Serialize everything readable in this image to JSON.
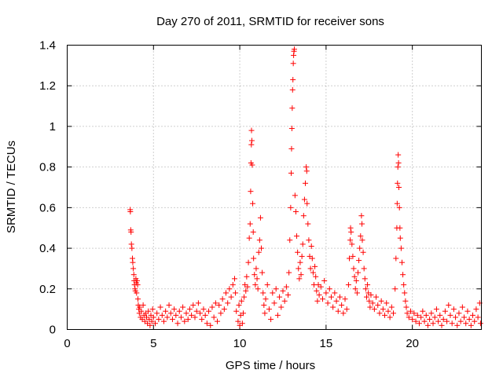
{
  "chart_data": {
    "type": "scatter",
    "title": "Day 270 of 2011, SRMTID for receiver sons",
    "xlabel": "GPS time / hours",
    "ylabel": "SRMTID / TECUs",
    "xlim": [
      0,
      24
    ],
    "ylim": [
      0,
      1.4
    ],
    "xticks": [
      "0",
      "5",
      "10",
      "15",
      "20"
    ],
    "yticks": [
      "0",
      "0.2",
      "0.4",
      "0.6",
      "0.8",
      "1",
      "1.2",
      "1.4"
    ],
    "grid": true,
    "marker": "+",
    "color": "#ff0000",
    "series": [
      {
        "points": [
          [
            3.65,
            0.59
          ],
          [
            3.66,
            0.58
          ],
          [
            3.68,
            0.49
          ],
          [
            3.7,
            0.48
          ],
          [
            3.72,
            0.42
          ],
          [
            3.75,
            0.4
          ],
          [
            3.78,
            0.35
          ],
          [
            3.8,
            0.33
          ],
          [
            3.83,
            0.3
          ],
          [
            3.86,
            0.27
          ],
          [
            3.88,
            0.24
          ],
          [
            3.9,
            0.22
          ],
          [
            3.93,
            0.2
          ],
          [
            3.95,
            0.19
          ],
          [
            3.98,
            0.25
          ],
          [
            4.0,
            0.23
          ],
          [
            4.02,
            0.18
          ],
          [
            4.05,
            0.24
          ],
          [
            4.08,
            0.22
          ],
          [
            4.1,
            0.15
          ],
          [
            4.12,
            0.12
          ],
          [
            4.15,
            0.1
          ],
          [
            4.18,
            0.08
          ],
          [
            4.2,
            0.11
          ],
          [
            4.25,
            0.06
          ],
          [
            4.3,
            0.09
          ],
          [
            4.35,
            0.05
          ],
          [
            4.4,
            0.12
          ],
          [
            4.45,
            0.07
          ],
          [
            4.5,
            0.04
          ],
          [
            4.55,
            0.08
          ],
          [
            4.6,
            0.06
          ],
          [
            4.65,
            0.03
          ],
          [
            4.7,
            0.09
          ],
          [
            4.75,
            0.05
          ],
          [
            4.8,
            0.02
          ],
          [
            4.85,
            0.07
          ],
          [
            4.9,
            0.04
          ],
          [
            4.95,
            0.1
          ],
          [
            5.0,
            0.06
          ],
          [
            5.1,
            0.03
          ],
          [
            5.2,
            0.08
          ],
          [
            5.3,
            0.05
          ],
          [
            5.4,
            0.11
          ],
          [
            5.5,
            0.07
          ],
          [
            5.6,
            0.04
          ],
          [
            5.7,
            0.09
          ],
          [
            5.8,
            0.06
          ],
          [
            5.9,
            0.12
          ],
          [
            6.0,
            0.08
          ],
          [
            6.1,
            0.05
          ],
          [
            6.2,
            0.1
          ],
          [
            6.3,
            0.07
          ],
          [
            6.4,
            0.03
          ],
          [
            6.5,
            0.09
          ],
          [
            6.6,
            0.06
          ],
          [
            6.7,
            0.11
          ],
          [
            6.8,
            0.04
          ],
          [
            6.9,
            0.08
          ],
          [
            7.0,
            0.05
          ],
          [
            7.1,
            0.1
          ],
          [
            7.2,
            0.07
          ],
          [
            7.3,
            0.12
          ],
          [
            7.4,
            0.06
          ],
          [
            7.5,
            0.09
          ],
          [
            7.6,
            0.13
          ],
          [
            7.7,
            0.08
          ],
          [
            7.8,
            0.05
          ],
          [
            7.9,
            0.1
          ],
          [
            8.0,
            0.07
          ],
          [
            8.1,
            0.03
          ],
          [
            8.2,
            0.09
          ],
          [
            8.3,
            0.02
          ],
          [
            8.4,
            0.11
          ],
          [
            8.5,
            0.06
          ],
          [
            8.6,
            0.13
          ],
          [
            8.7,
            0.04
          ],
          [
            8.8,
            0.12
          ],
          [
            8.9,
            0.08
          ],
          [
            9.0,
            0.15
          ],
          [
            9.1,
            0.1
          ],
          [
            9.2,
            0.18
          ],
          [
            9.3,
            0.13
          ],
          [
            9.4,
            0.2
          ],
          [
            9.5,
            0.16
          ],
          [
            9.6,
            0.22
          ],
          [
            9.7,
            0.25
          ],
          [
            9.75,
            0.18
          ],
          [
            9.8,
            0.09
          ],
          [
            9.9,
            0.04
          ],
          [
            9.95,
            0.12
          ],
          [
            10.0,
            0.02
          ],
          [
            10.05,
            0.07
          ],
          [
            10.1,
            0.14
          ],
          [
            10.15,
            0.03
          ],
          [
            10.2,
            0.08
          ],
          [
            10.25,
            0.16
          ],
          [
            10.3,
            0.22
          ],
          [
            10.35,
            0.19
          ],
          [
            10.4,
            0.26
          ],
          [
            10.45,
            0.21
          ],
          [
            10.5,
            0.33
          ],
          [
            10.55,
            0.45
          ],
          [
            10.6,
            0.52
          ],
          [
            10.63,
            0.68
          ],
          [
            10.65,
            0.82
          ],
          [
            10.67,
            0.91
          ],
          [
            10.68,
            0.98
          ],
          [
            10.7,
            0.93
          ],
          [
            10.72,
            0.81
          ],
          [
            10.75,
            0.62
          ],
          [
            10.78,
            0.48
          ],
          [
            10.8,
            0.35
          ],
          [
            10.85,
            0.27
          ],
          [
            10.9,
            0.22
          ],
          [
            10.95,
            0.3
          ],
          [
            11.0,
            0.25
          ],
          [
            11.05,
            0.2
          ],
          [
            11.1,
            0.38
          ],
          [
            11.15,
            0.44
          ],
          [
            11.2,
            0.55
          ],
          [
            11.25,
            0.4
          ],
          [
            11.3,
            0.28
          ],
          [
            11.35,
            0.18
          ],
          [
            11.4,
            0.12
          ],
          [
            11.45,
            0.08
          ],
          [
            11.5,
            0.15
          ],
          [
            11.6,
            0.22
          ],
          [
            11.7,
            0.1
          ],
          [
            11.8,
            0.05
          ],
          [
            11.9,
            0.18
          ],
          [
            12.0,
            0.13
          ],
          [
            12.1,
            0.2
          ],
          [
            12.2,
            0.07
          ],
          [
            12.3,
            0.16
          ],
          [
            12.4,
            0.11
          ],
          [
            12.5,
            0.19
          ],
          [
            12.6,
            0.14
          ],
          [
            12.7,
            0.21
          ],
          [
            12.8,
            0.17
          ],
          [
            12.85,
            0.28
          ],
          [
            12.9,
            0.44
          ],
          [
            12.95,
            0.6
          ],
          [
            12.98,
            0.77
          ],
          [
            13.0,
            0.89
          ],
          [
            13.02,
            0.99
          ],
          [
            13.04,
            1.09
          ],
          [
            13.06,
            1.18
          ],
          [
            13.08,
            1.23
          ],
          [
            13.1,
            1.31
          ],
          [
            13.12,
            1.35
          ],
          [
            13.14,
            1.37
          ],
          [
            13.16,
            1.38
          ],
          [
            13.2,
            0.66
          ],
          [
            13.25,
            0.58
          ],
          [
            13.3,
            0.46
          ],
          [
            13.35,
            0.38
          ],
          [
            13.4,
            0.3
          ],
          [
            13.45,
            0.25
          ],
          [
            13.5,
            0.33
          ],
          [
            13.55,
            0.27
          ],
          [
            13.6,
            0.36
          ],
          [
            13.65,
            0.42
          ],
          [
            13.7,
            0.56
          ],
          [
            13.75,
            0.64
          ],
          [
            13.8,
            0.72
          ],
          [
            13.85,
            0.8
          ],
          [
            13.88,
            0.78
          ],
          [
            13.9,
            0.62
          ],
          [
            13.95,
            0.52
          ],
          [
            14.0,
            0.44
          ],
          [
            14.05,
            0.36
          ],
          [
            14.1,
            0.3
          ],
          [
            14.15,
            0.41
          ],
          [
            14.2,
            0.35
          ],
          [
            14.25,
            0.28
          ],
          [
            14.3,
            0.22
          ],
          [
            14.35,
            0.31
          ],
          [
            14.4,
            0.26
          ],
          [
            14.45,
            0.19
          ],
          [
            14.5,
            0.14
          ],
          [
            14.55,
            0.22
          ],
          [
            14.6,
            0.17
          ],
          [
            14.7,
            0.21
          ],
          [
            14.8,
            0.15
          ],
          [
            14.9,
            0.24
          ],
          [
            15.0,
            0.18
          ],
          [
            15.1,
            0.13
          ],
          [
            15.2,
            0.2
          ],
          [
            15.3,
            0.16
          ],
          [
            15.4,
            0.11
          ],
          [
            15.5,
            0.18
          ],
          [
            15.6,
            0.14
          ],
          [
            15.7,
            0.09
          ],
          [
            15.8,
            0.16
          ],
          [
            15.9,
            0.12
          ],
          [
            16.0,
            0.08
          ],
          [
            16.1,
            0.15
          ],
          [
            16.2,
            0.1
          ],
          [
            16.3,
            0.22
          ],
          [
            16.35,
            0.35
          ],
          [
            16.4,
            0.44
          ],
          [
            16.42,
            0.5
          ],
          [
            16.45,
            0.48
          ],
          [
            16.5,
            0.42
          ],
          [
            16.55,
            0.36
          ],
          [
            16.6,
            0.3
          ],
          [
            16.65,
            0.26
          ],
          [
            16.7,
            0.2
          ],
          [
            16.75,
            0.24
          ],
          [
            16.8,
            0.18
          ],
          [
            16.85,
            0.28
          ],
          [
            16.9,
            0.34
          ],
          [
            16.95,
            0.4
          ],
          [
            17.0,
            0.46
          ],
          [
            17.05,
            0.56
          ],
          [
            17.08,
            0.52
          ],
          [
            17.1,
            0.44
          ],
          [
            17.15,
            0.38
          ],
          [
            17.2,
            0.3
          ],
          [
            17.25,
            0.25
          ],
          [
            17.3,
            0.2
          ],
          [
            17.35,
            0.16
          ],
          [
            17.4,
            0.22
          ],
          [
            17.45,
            0.18
          ],
          [
            17.5,
            0.14
          ],
          [
            17.55,
            0.11
          ],
          [
            17.6,
            0.17
          ],
          [
            17.7,
            0.13
          ],
          [
            17.8,
            0.1
          ],
          [
            17.9,
            0.16
          ],
          [
            18.0,
            0.12
          ],
          [
            18.1,
            0.08
          ],
          [
            18.2,
            0.14
          ],
          [
            18.3,
            0.1
          ],
          [
            18.4,
            0.07
          ],
          [
            18.5,
            0.13
          ],
          [
            18.6,
            0.09
          ],
          [
            18.7,
            0.06
          ],
          [
            18.8,
            0.11
          ],
          [
            18.9,
            0.08
          ],
          [
            19.0,
            0.2
          ],
          [
            19.05,
            0.35
          ],
          [
            19.1,
            0.5
          ],
          [
            19.12,
            0.62
          ],
          [
            19.14,
            0.72
          ],
          [
            19.16,
            0.8
          ],
          [
            19.18,
            0.86
          ],
          [
            19.2,
            0.82
          ],
          [
            19.22,
            0.7
          ],
          [
            19.25,
            0.6
          ],
          [
            19.28,
            0.5
          ],
          [
            19.3,
            0.45
          ],
          [
            19.35,
            0.4
          ],
          [
            19.4,
            0.33
          ],
          [
            19.45,
            0.27
          ],
          [
            19.5,
            0.22
          ],
          [
            19.55,
            0.18
          ],
          [
            19.6,
            0.14
          ],
          [
            19.65,
            0.11
          ],
          [
            19.7,
            0.08
          ],
          [
            19.8,
            0.06
          ],
          [
            19.9,
            0.09
          ],
          [
            20.0,
            0.05
          ],
          [
            20.1,
            0.08
          ],
          [
            20.2,
            0.04
          ],
          [
            20.3,
            0.07
          ],
          [
            20.4,
            0.03
          ],
          [
            20.5,
            0.06
          ],
          [
            20.6,
            0.09
          ],
          [
            20.7,
            0.04
          ],
          [
            20.8,
            0.07
          ],
          [
            20.9,
            0.02
          ],
          [
            21.0,
            0.05
          ],
          [
            21.1,
            0.08
          ],
          [
            21.2,
            0.03
          ],
          [
            21.3,
            0.06
          ],
          [
            21.4,
            0.1
          ],
          [
            21.5,
            0.04
          ],
          [
            21.6,
            0.07
          ],
          [
            21.7,
            0.02
          ],
          [
            21.8,
            0.05
          ],
          [
            21.9,
            0.09
          ],
          [
            22.0,
            0.04
          ],
          [
            22.1,
            0.12
          ],
          [
            22.2,
            0.07
          ],
          [
            22.3,
            0.03
          ],
          [
            22.4,
            0.1
          ],
          [
            22.5,
            0.06
          ],
          [
            22.6,
            0.02
          ],
          [
            22.7,
            0.08
          ],
          [
            22.8,
            0.04
          ],
          [
            22.9,
            0.11
          ],
          [
            23.0,
            0.06
          ],
          [
            23.1,
            0.03
          ],
          [
            23.2,
            0.09
          ],
          [
            23.3,
            0.05
          ],
          [
            23.4,
            0.02
          ],
          [
            23.5,
            0.07
          ],
          [
            23.6,
            0.04
          ],
          [
            23.7,
            0.1
          ],
          [
            23.8,
            0.06
          ],
          [
            23.9,
            0.13
          ],
          [
            23.95,
            0.03
          ]
        ]
      }
    ]
  }
}
